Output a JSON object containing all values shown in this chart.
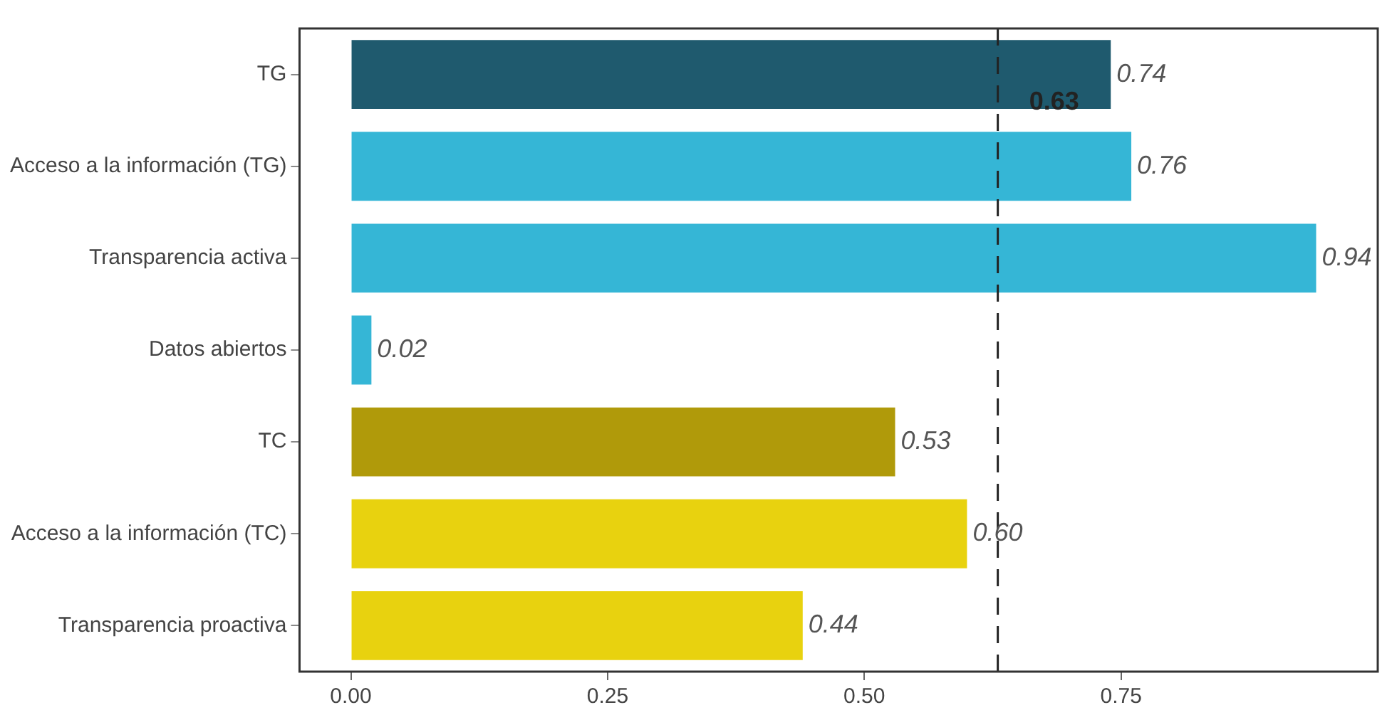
{
  "chart_data": {
    "type": "bar",
    "orientation": "horizontal",
    "categories": [
      "TG",
      "Acceso a la información (TG)",
      "Transparencia activa",
      "Datos abiertos",
      "TC",
      "Acceso a la información (TC)",
      "Transparencia proactiva"
    ],
    "values": [
      0.74,
      0.76,
      0.94,
      0.02,
      0.53,
      0.6,
      0.44
    ],
    "colors": [
      "#1f5a6e",
      "#35b6d6",
      "#35b6d6",
      "#35b6d6",
      "#b09a0a",
      "#e8d20f",
      "#e8d20f"
    ],
    "value_labels": [
      "0.74",
      "0.76",
      "0.94",
      "0.02",
      "0.53",
      "0.60",
      "0.44"
    ],
    "xlim": [
      -0.05,
      1.0
    ],
    "xticks": [
      {
        "value": 0,
        "label": "0.00"
      },
      {
        "value": 0.25,
        "label": "0.25"
      },
      {
        "value": 0.5,
        "label": "0.50"
      },
      {
        "value": 0.75,
        "label": "0.75"
      }
    ],
    "ref_lines": [
      {
        "axis": "x",
        "value": 0.63,
        "label": "0.63",
        "color": "#222222",
        "line_style": "dashed"
      }
    ],
    "grid": false,
    "legend": false
  }
}
